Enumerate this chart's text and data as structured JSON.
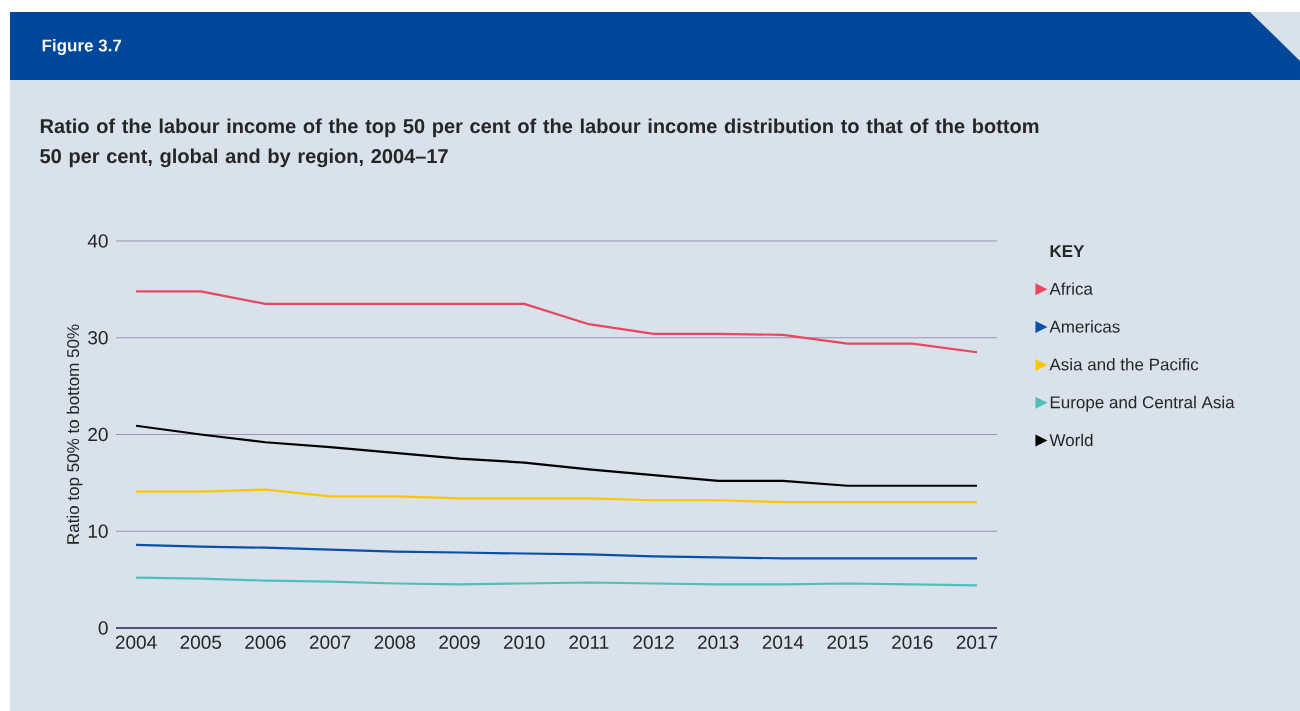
{
  "chart_data": {
    "type": "line",
    "title": "Ratio of the labour income of the top 50 per cent of the labour income distribution to that of the bottom 50 per cent, global and by region, 2004–17",
    "annotations": [
      "Figure 3.7"
    ],
    "ylabel": "Ratio top 50% to bottom 50%",
    "legend_title": "KEY",
    "categories": [
      "2004",
      "2005",
      "2006",
      "2007",
      "2008",
      "2009",
      "2010",
      "2011",
      "2012",
      "2013",
      "2014",
      "2015",
      "2016",
      "2017"
    ],
    "series": [
      {
        "name": "Africa",
        "color": "#e8475d",
        "values": [
          34.8,
          34.8,
          33.5,
          33.5,
          33.5,
          33.5,
          33.5,
          31.4,
          30.4,
          30.4,
          30.3,
          29.4,
          29.4,
          28.5
        ]
      },
      {
        "name": "Americas",
        "color": "#0d4ea6",
        "values": [
          8.6,
          8.4,
          8.3,
          8.1,
          7.9,
          7.8,
          7.7,
          7.6,
          7.4,
          7.3,
          7.2,
          7.2,
          7.2,
          7.2
        ]
      },
      {
        "name": "Asia and the Pacific",
        "color": "#fcc600",
        "values": [
          14.1,
          14.1,
          14.3,
          13.6,
          13.6,
          13.4,
          13.4,
          13.4,
          13.2,
          13.2,
          13.0,
          13.0,
          13.0,
          13.0
        ]
      },
      {
        "name": "Europe and Central Asia",
        "color": "#4fbfba",
        "values": [
          5.2,
          5.1,
          4.9,
          4.8,
          4.6,
          4.5,
          4.6,
          4.7,
          4.6,
          4.5,
          4.5,
          4.6,
          4.5,
          4.4
        ]
      },
      {
        "name": "World",
        "color": "#000000",
        "values": [
          20.9,
          20.0,
          19.2,
          18.7,
          18.1,
          17.5,
          17.1,
          16.4,
          15.8,
          15.2,
          15.2,
          14.7,
          14.7,
          14.7
        ]
      }
    ],
    "ylim": [
      0,
      40
    ],
    "yticks": [
      0,
      10,
      20,
      30,
      40
    ],
    "grid": "y",
    "legend": "right",
    "marker": "none",
    "line_style": "solid"
  }
}
